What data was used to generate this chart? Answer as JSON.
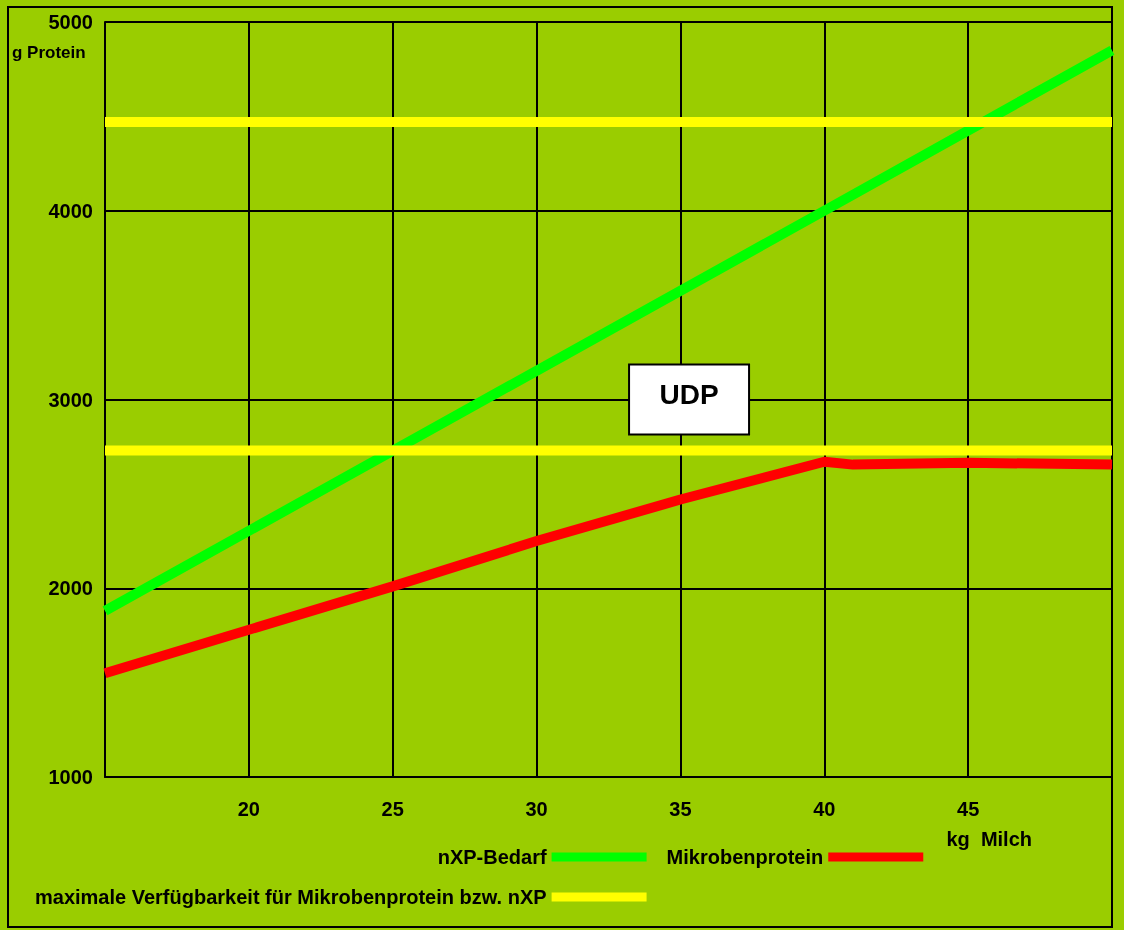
{
  "chart_data": {
    "type": "line",
    "xlabel": "kg  Milch",
    "ylabel": "g Protein",
    "xlim": [
      15,
      50
    ],
    "xticks": [
      {
        "value": 15,
        "label": null
      },
      20,
      25,
      30,
      35,
      40,
      45,
      {
        "value": 50,
        "label": null
      }
    ],
    "ylim": [
      1000,
      5000
    ],
    "yticks": [
      1000,
      2000,
      3000,
      4000,
      5000
    ],
    "grid": true,
    "legend": "bottom",
    "marker": "none",
    "line_style": "solid",
    "series": [
      {
        "name": "nXP-Bedarf",
        "color": "#00ff00",
        "x": [
          15,
          40,
          50
        ],
        "values": [
          1880,
          4000,
          4850
        ]
      },
      {
        "name": "Mikrobenprotein",
        "color": "#ff0000",
        "x": [
          15,
          25,
          30,
          35,
          40,
          41,
          45,
          50
        ],
        "values": [
          1550,
          2010,
          2250,
          2470,
          2670,
          2655,
          2665,
          2655
        ]
      },
      {
        "name": "maximale Verfügbarkeit für Mikrobenprotein bzw. nXP",
        "color": "#ffff00",
        "x": [
          15,
          50
        ],
        "values": [
          4470,
          4470
        ]
      },
      {
        "color": "#ffff00",
        "x": [
          15,
          50
        ],
        "values": [
          2730,
          2730
        ]
      }
    ],
    "annotations": [
      "UDP"
    ]
  }
}
